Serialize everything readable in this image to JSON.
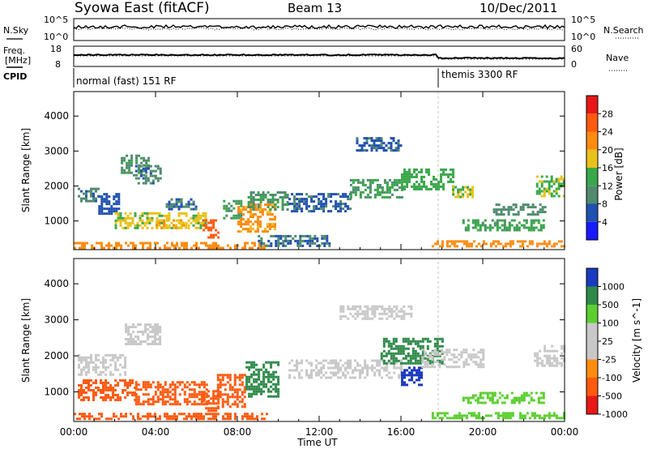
{
  "header": {
    "station": "Syowa East (fitACF)",
    "beam": "Beam 13",
    "date": "10/Dec/2011"
  },
  "labels": {
    "nsky": "N.Sky",
    "nsearch": "N.Search",
    "freq": "Freq.",
    "freq_unit": "[MHz]",
    "nave": "Nave",
    "cpid": "CPID",
    "exp_1": "normal (fast) 151 RF",
    "exp_2": "themis 3300 RF",
    "noise_top_left": "10^5",
    "noise_bot_left": "10^0",
    "noise_top_right": "10^5",
    "noise_bot_right": "10^0",
    "freq_top": "18",
    "freq_bot": "8",
    "nave_top": "60",
    "nave_bot": "0",
    "xlabel": "Time UT",
    "ylabel": "Slant Range [km]"
  },
  "colors": {
    "power": [
      "#1a1aff",
      "#2050b0",
      "#4f8a6e",
      "#3aa84a",
      "#e8c21a",
      "#ff8c10",
      "#ff5a10",
      "#e81818"
    ],
    "velocity": [
      "#e81818",
      "#ff5a10",
      "#ff8c10",
      "#c8c8c8",
      "#c8c8c8",
      "#5ccf30",
      "#2f8a4a",
      "#1a3ac0"
    ]
  },
  "chart_data": [
    {
      "type": "heatmap",
      "name": "power",
      "xlabel": "Time UT",
      "ylabel": "Slant Range [km]",
      "xticks": [
        "00:00",
        "04:00",
        "08:00",
        "12:00",
        "16:00",
        "20:00",
        "00:00"
      ],
      "xlim": [
        0,
        24
      ],
      "yticks": [
        1000,
        2000,
        3000,
        4000
      ],
      "ylim": [
        180,
        4700
      ],
      "colorbar": {
        "label": "Power [dB]",
        "tick_labels": [
          "4",
          "8",
          "12",
          "16",
          "20",
          "24",
          "28"
        ],
        "range": [
          0,
          32
        ]
      },
      "patches": [
        {
          "t": [
            0.2,
            1.2
          ],
          "r": [
            1550,
            1950
          ],
          "v": 9
        },
        {
          "t": [
            1.2,
            2.2
          ],
          "r": [
            1200,
            1800
          ],
          "v": 6
        },
        {
          "t": [
            2.3,
            3.7
          ],
          "r": [
            2300,
            2900
          ],
          "v": 11
        },
        {
          "t": [
            3.0,
            4.2
          ],
          "r": [
            2100,
            2600
          ],
          "v": 9
        },
        {
          "t": [
            2.0,
            6.5
          ],
          "r": [
            780,
            1250
          ],
          "v": 17
        },
        {
          "t": [
            4.0,
            5.5
          ],
          "r": [
            800,
            1050
          ],
          "v": 20
        },
        {
          "t": [
            4.5,
            6.0
          ],
          "r": [
            1350,
            1650
          ],
          "v": 8
        },
        {
          "t": [
            6.3,
            7.1
          ],
          "r": [
            550,
            1050
          ],
          "v": 26
        },
        {
          "t": [
            7.3,
            8.2
          ],
          "r": [
            1050,
            1600
          ],
          "v": 12
        },
        {
          "t": [
            8.0,
            9.8
          ],
          "r": [
            700,
            1500
          ],
          "v": 21
        },
        {
          "t": [
            8.5,
            10.5
          ],
          "r": [
            1300,
            1850
          ],
          "v": 11
        },
        {
          "t": [
            0.0,
            9.5
          ],
          "r": [
            240,
            400
          ],
          "v": 22
        },
        {
          "t": [
            9.0,
            12.5
          ],
          "r": [
            260,
            600
          ],
          "v": 8
        },
        {
          "t": [
            10.5,
            13.5
          ],
          "r": [
            1300,
            1800
          ],
          "v": 7
        },
        {
          "t": [
            13.5,
            16.0
          ],
          "r": [
            1700,
            2200
          ],
          "v": 12
        },
        {
          "t": [
            13.8,
            16.0
          ],
          "r": [
            3000,
            3400
          ],
          "v": 7
        },
        {
          "t": [
            16.0,
            18.5
          ],
          "r": [
            1900,
            2500
          ],
          "v": 14
        },
        {
          "t": [
            18.5,
            19.5
          ],
          "r": [
            1700,
            2000
          ],
          "v": 16
        },
        {
          "t": [
            19.0,
            23.0
          ],
          "r": [
            750,
            1050
          ],
          "v": 13
        },
        {
          "t": [
            20.5,
            23.0
          ],
          "r": [
            1200,
            1500
          ],
          "v": 10
        },
        {
          "t": [
            22.6,
            24.0
          ],
          "r": [
            1700,
            2300
          ],
          "v": 15
        },
        {
          "t": [
            17.5,
            24.0
          ],
          "r": [
            250,
            450
          ],
          "v": 22
        }
      ]
    },
    {
      "type": "heatmap",
      "name": "velocity",
      "xlabel": "Time UT",
      "ylabel": "Slant Range [km]",
      "xticks": [
        "00:00",
        "04:00",
        "08:00",
        "12:00",
        "16:00",
        "20:00",
        "00:00"
      ],
      "xlim": [
        0,
        24
      ],
      "yticks": [
        1000,
        2000,
        3000,
        4000
      ],
      "ylim": [
        180,
        4700
      ],
      "colorbar": {
        "label": "Velocity [m s^-1]",
        "tick_labels": [
          "1000",
          "500",
          "100",
          "25",
          "-25",
          "-100",
          "-500",
          "-1000"
        ]
      },
      "patches": [
        {
          "t": [
            0.2,
            2.5
          ],
          "r": [
            1450,
            2050
          ],
          "v": -20
        },
        {
          "t": [
            2.5,
            4.2
          ],
          "r": [
            2300,
            2900
          ],
          "v": 0
        },
        {
          "t": [
            0.2,
            3.0
          ],
          "r": [
            800,
            1350
          ],
          "v": -200
        },
        {
          "t": [
            3.0,
            6.5
          ],
          "r": [
            650,
            1300
          ],
          "v": -180
        },
        {
          "t": [
            0.0,
            9.5
          ],
          "r": [
            240,
            420
          ],
          "v": -180
        },
        {
          "t": [
            6.3,
            7.1
          ],
          "r": [
            500,
            1050
          ],
          "v": -400
        },
        {
          "t": [
            7.0,
            8.4
          ],
          "r": [
            600,
            1500
          ],
          "v": -250
        },
        {
          "t": [
            8.4,
            10.0
          ],
          "r": [
            900,
            1850
          ],
          "v": 150
        },
        {
          "t": [
            10.5,
            16.0
          ],
          "r": [
            1400,
            1900
          ],
          "v": 0
        },
        {
          "t": [
            13.0,
            16.5
          ],
          "r": [
            3000,
            3400
          ],
          "v": 10
        },
        {
          "t": [
            15.0,
            18.0
          ],
          "r": [
            1800,
            2500
          ],
          "v": 250
        },
        {
          "t": [
            16.0,
            17.0
          ],
          "r": [
            1200,
            1700
          ],
          "v": 700
        },
        {
          "t": [
            17.0,
            20.0
          ],
          "r": [
            1700,
            2200
          ],
          "v": 0
        },
        {
          "t": [
            19.0,
            23.0
          ],
          "r": [
            700,
            1000
          ],
          "v": 60
        },
        {
          "t": [
            22.5,
            24.0
          ],
          "r": [
            1700,
            2300
          ],
          "v": 0
        },
        {
          "t": [
            17.5,
            24.0
          ],
          "r": [
            260,
            440
          ],
          "v": 50
        }
      ]
    }
  ]
}
